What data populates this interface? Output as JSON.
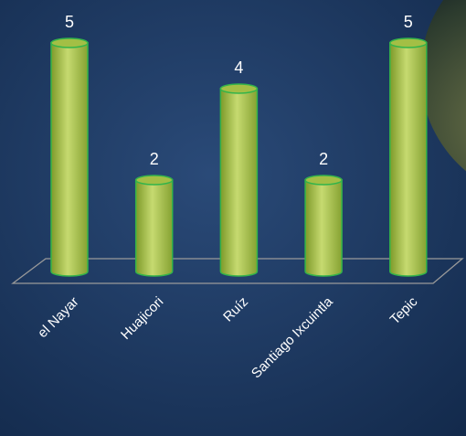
{
  "chart_data": {
    "type": "bar",
    "style": "cylinder",
    "categories": [
      "el Nayar",
      "Huajicori",
      "Ruíz",
      "Santiago Ixcuintla",
      "Tepic"
    ],
    "values": [
      5,
      2,
      4,
      2,
      5
    ],
    "color": "#9bbb3b"
  }
}
